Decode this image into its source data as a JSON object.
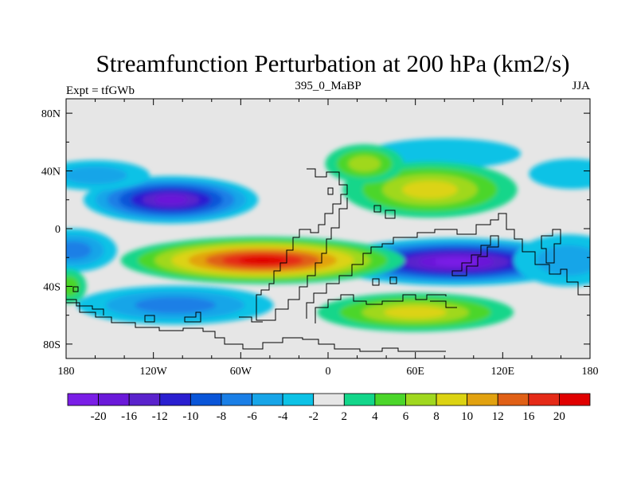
{
  "chart_data": {
    "type": "heatmap",
    "title": "Streamfunction Perturbation at 200 hPa (km2/s)",
    "left_label": "Expt = tfGWb",
    "center_label": "395_0_MaBP",
    "right_label": "JJA",
    "x_range": [
      -180,
      180
    ],
    "y_range": [
      -90,
      90
    ],
    "x_ticks": [
      {
        "value": -180,
        "label": "180"
      },
      {
        "value": -120,
        "label": "120W"
      },
      {
        "value": -60,
        "label": "60W"
      },
      {
        "value": 0,
        "label": "0"
      },
      {
        "value": 60,
        "label": "60E"
      },
      {
        "value": 120,
        "label": "120E"
      },
      {
        "value": 180,
        "label": "180"
      }
    ],
    "y_ticks": [
      {
        "value": 80,
        "label": "80N"
      },
      {
        "value": 40,
        "label": "40N"
      },
      {
        "value": 0,
        "label": "0"
      },
      {
        "value": -40,
        "label": "40S"
      },
      {
        "value": -80,
        "label": "80S"
      }
    ],
    "colorbar": {
      "colors": [
        "#7a1ee6",
        "#6a19d9",
        "#5a22cc",
        "#2a1fd0",
        "#0a55d8",
        "#1a7fe6",
        "#17a5e8",
        "#0dc2e6",
        "#e6e6e6",
        "#13d68a",
        "#4bd62a",
        "#a0d81f",
        "#dcd312",
        "#e2a210",
        "#e06016",
        "#e52a17",
        "#e00000"
      ],
      "boundaries": [
        "-20",
        "-16",
        "-12",
        "-10",
        "-8",
        "-6",
        "-4",
        "-2",
        "2",
        "4",
        "6",
        "8",
        "10",
        "12",
        "16",
        "20"
      ]
    },
    "blobs": [
      {
        "lon": -108,
        "lat": 20,
        "rlon": 40,
        "rlat": 11,
        "value": -18
      },
      {
        "lon": -160,
        "lat": 37,
        "rlon": 25,
        "rlat": 7,
        "value": -5
      },
      {
        "lon": -175,
        "lat": -15,
        "rlon": 20,
        "rlat": 10,
        "value": -6
      },
      {
        "lon": -105,
        "lat": -53,
        "rlon": 45,
        "rlat": 9,
        "value": -6
      },
      {
        "lon": 88,
        "lat": -23,
        "rlon": 60,
        "rlat": 11,
        "value": -20
      },
      {
        "lon": 165,
        "lat": -22,
        "rlon": 25,
        "rlat": 12,
        "value": -5
      },
      {
        "lon": 168,
        "lat": 38,
        "rlon": 20,
        "rlat": 7,
        "value": -3
      },
      {
        "lon": 80,
        "lat": 52,
        "rlon": 35,
        "rlat": 7,
        "value": -3
      },
      {
        "lon": -45,
        "lat": -22,
        "rlon": 65,
        "rlat": 11,
        "value": 20
      },
      {
        "lon": 70,
        "lat": 27,
        "rlon": 40,
        "rlat": 13,
        "value": 9
      },
      {
        "lon": 25,
        "lat": 45,
        "rlon": 18,
        "rlat": 9,
        "value": 7
      },
      {
        "lon": 60,
        "lat": -58,
        "rlon": 45,
        "rlat": 9,
        "value": 9
      },
      {
        "lon": -178,
        "lat": -40,
        "rlon": 8,
        "rlat": 8,
        "value": 4
      }
    ]
  }
}
